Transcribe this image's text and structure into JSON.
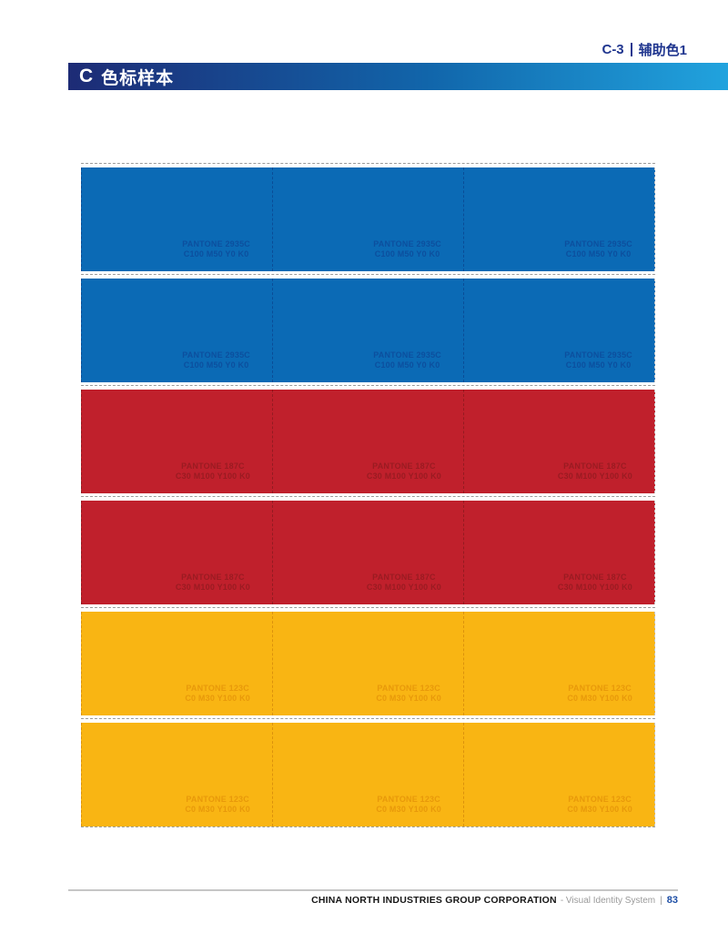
{
  "header": {
    "section_code": "C-3",
    "section_title": "辅助色1"
  },
  "title_bar": {
    "prefix": "C",
    "title": "色标样本"
  },
  "colors": {
    "blue": {
      "fill": "#0b6ab5",
      "label": "#0c4f9e",
      "divider": "#0a4c96"
    },
    "red": {
      "fill": "#c0202c",
      "label": "#9a1b22",
      "divider": "#941a21"
    },
    "yellow": {
      "fill": "#f9b513",
      "label": "#e8990a",
      "divider": "#db920c"
    }
  },
  "swatch_rows": [
    {
      "color": "blue",
      "pantone": "PANTONE 2935C",
      "cmyk": "C100 M50 Y0 K0"
    },
    {
      "color": "blue",
      "pantone": "PANTONE 2935C",
      "cmyk": "C100 M50 Y0 K0"
    },
    {
      "color": "red",
      "pantone": "PANTONE 187C",
      "cmyk": "C30 M100 Y100 K0"
    },
    {
      "color": "red",
      "pantone": "PANTONE 187C",
      "cmyk": "C30 M100 Y100 K0"
    },
    {
      "color": "yellow",
      "pantone": "PANTONE 123C",
      "cmyk": "C0 M30 Y100 K0"
    },
    {
      "color": "yellow",
      "pantone": "PANTONE 123C",
      "cmyk": "C0 M30 Y100 K0"
    }
  ],
  "footer": {
    "company": "CHINA NORTH INDUSTRIES GROUP CORPORATION",
    "subtitle": "- Visual Identity System",
    "separator": "|",
    "page_number": "83"
  }
}
